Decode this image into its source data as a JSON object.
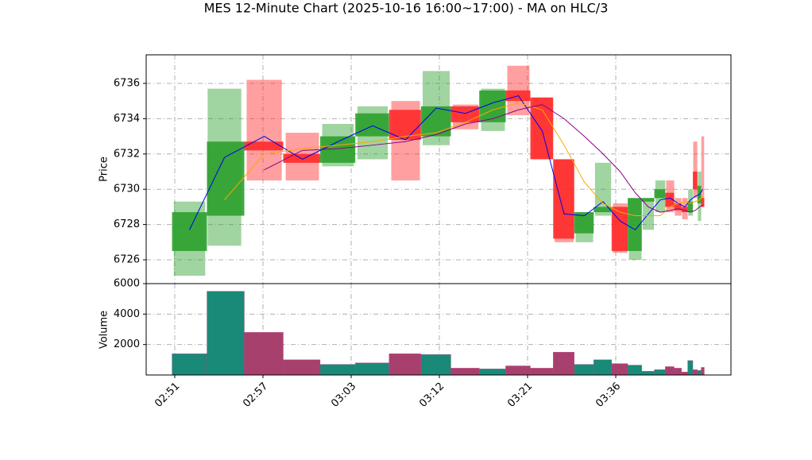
{
  "chart_data": [
    {
      "type": "candlestick",
      "title": "MES 12-Minute Chart (2025-10-16 16:00~17:00) - MA on HLC/3",
      "ylabel": "Price",
      "x": [
        0.167,
        0.563,
        1.014,
        1.446,
        1.851,
        2.243,
        2.617,
        2.964,
        3.297,
        3.608,
        3.896,
        4.167,
        4.414,
        4.644,
        4.856,
        5.05,
        5.221,
        5.369,
        5.505,
        5.617,
        5.707,
        5.784,
        5.847,
        5.901,
        5.95,
        5.986
      ],
      "open": [
        6726.5,
        6728.5,
        6732.7,
        6732.0,
        6731.5,
        6733.0,
        6734.5,
        6733.0,
        6734.7,
        6733.8,
        6735.6,
        6735.2,
        6731.7,
        6727.5,
        6728.7,
        6729.0,
        6726.5,
        6729.3,
        6729.5,
        6729.8,
        6729.2,
        6729.0,
        6728.7,
        6731.0,
        6729.2,
        6729.5
      ],
      "high": [
        6729.3,
        6735.7,
        6736.2,
        6733.2,
        6733.7,
        6734.7,
        6735.0,
        6736.7,
        6734.8,
        6735.7,
        6737.0,
        6735.2,
        6731.7,
        6728.7,
        6731.5,
        6729.2,
        6729.5,
        6729.5,
        6730.5,
        6730.5,
        6729.5,
        6729.5,
        6730.0,
        6732.7,
        6731.0,
        6733.0
      ],
      "low": [
        6725.1,
        6726.8,
        6730.5,
        6730.5,
        6731.3,
        6731.7,
        6730.5,
        6732.5,
        6733.4,
        6733.3,
        6734.2,
        6731.7,
        6727.0,
        6727.0,
        6728.5,
        6726.4,
        6726.0,
        6727.7,
        6728.7,
        6728.7,
        6728.5,
        6728.3,
        6728.5,
        6729.5,
        6728.2,
        6729.0
      ],
      "close": [
        6728.7,
        6732.7,
        6732.2,
        6731.5,
        6733.0,
        6734.3,
        6732.8,
        6734.7,
        6733.8,
        6735.6,
        6735.0,
        6731.7,
        6727.2,
        6728.7,
        6729.0,
        6726.5,
        6729.5,
        6729.5,
        6730.0,
        6729.0,
        6728.8,
        6728.7,
        6729.3,
        6730.0,
        6730.2,
        6729.0
      ],
      "up_color": "#2ca02c",
      "down_color": "#ff2a2a",
      "series": [
        {
          "color": "#0000ee",
          "values": [
            6727.7,
            6731.8,
            6733.0,
            6731.7,
            6732.7,
            6733.6,
            6732.8,
            6734.6,
            6734.3,
            6734.9,
            6735.3,
            6733.3,
            6728.6,
            6728.5,
            6729.3,
            6728.2,
            6727.7,
            6728.6,
            6729.4,
            6729.5,
            6729.2,
            6729.0,
            6729.4,
            6729.6,
            6729.7,
            6730.0
          ]
        },
        {
          "color": "#ffa500",
          "values": [
            null,
            6729.4,
            6732.0,
            6732.3,
            6732.5,
            6732.7,
            6733.0,
            6733.2,
            6733.8,
            6734.5,
            6734.9,
            6734.5,
            6732.5,
            6730.4,
            6729.2,
            6728.7,
            6728.5,
            6728.5,
            6728.5,
            6729.0,
            6729.2,
            6729.3,
            6729.2,
            6729.3,
            6729.4,
            6729.6
          ]
        },
        {
          "color": "#8b008b",
          "values": [
            null,
            null,
            6731.1,
            6732.2,
            6732.3,
            6732.5,
            6732.7,
            6733.1,
            6733.7,
            6734.0,
            6734.5,
            6734.8,
            6734.0,
            6733.0,
            6732.0,
            6731.0,
            6729.8,
            6729.0,
            6728.7,
            6728.8,
            6728.9,
            6728.8,
            6728.7,
            6728.8,
            6729.0,
            6729.1
          ]
        }
      ],
      "xlim": [
        -0.324,
        6.306
      ],
      "ylim": [
        6724.65,
        6737.62
      ],
      "yticks": [
        6726,
        6728,
        6730,
        6732,
        6734,
        6736
      ],
      "grid": true
    },
    {
      "type": "bar",
      "ylabel": "Volume",
      "x": [
        0.167,
        0.563,
        1.014,
        1.446,
        1.851,
        2.243,
        2.617,
        2.964,
        3.297,
        3.608,
        3.896,
        4.167,
        4.414,
        4.644,
        4.856,
        5.05,
        5.221,
        5.369,
        5.505,
        5.617,
        5.707,
        5.784,
        5.847,
        5.901,
        5.95,
        5.986
      ],
      "values": [
        1400,
        5500,
        2800,
        1000,
        700,
        800,
        1400,
        1350,
        450,
        400,
        600,
        450,
        1500,
        700,
        1000,
        750,
        650,
        250,
        350,
        550,
        450,
        200,
        950,
        350,
        300,
        500
      ],
      "colors": [
        "#1a8a78",
        "#1a8a78",
        "#a8406e",
        "#a8406e",
        "#1a8a78",
        "#1a8a78",
        "#a8406e",
        "#1a8a78",
        "#a8406e",
        "#1a8a78",
        "#a8406e",
        "#a8406e",
        "#a8406e",
        "#1a8a78",
        "#1a8a78",
        "#a8406e",
        "#1a8a78",
        "#1a8a78",
        "#1a8a78",
        "#a8406e",
        "#a8406e",
        "#a8406e",
        "#1a8a78",
        "#a8406e",
        "#1a8a78",
        "#a8406e"
      ],
      "xlim": [
        -0.324,
        6.306
      ],
      "ylim": [
        0,
        6000
      ],
      "yticks": [
        2000,
        4000,
        6000
      ],
      "xticks": [
        {
          "value": 0,
          "label": "02:51"
        },
        {
          "value": 1,
          "label": "02:57"
        },
        {
          "value": 2,
          "label": "03:03"
        },
        {
          "value": 3,
          "label": "03:12"
        },
        {
          "value": 4,
          "label": "03:21"
        },
        {
          "value": 5,
          "label": "03:36"
        }
      ],
      "grid": true
    }
  ]
}
